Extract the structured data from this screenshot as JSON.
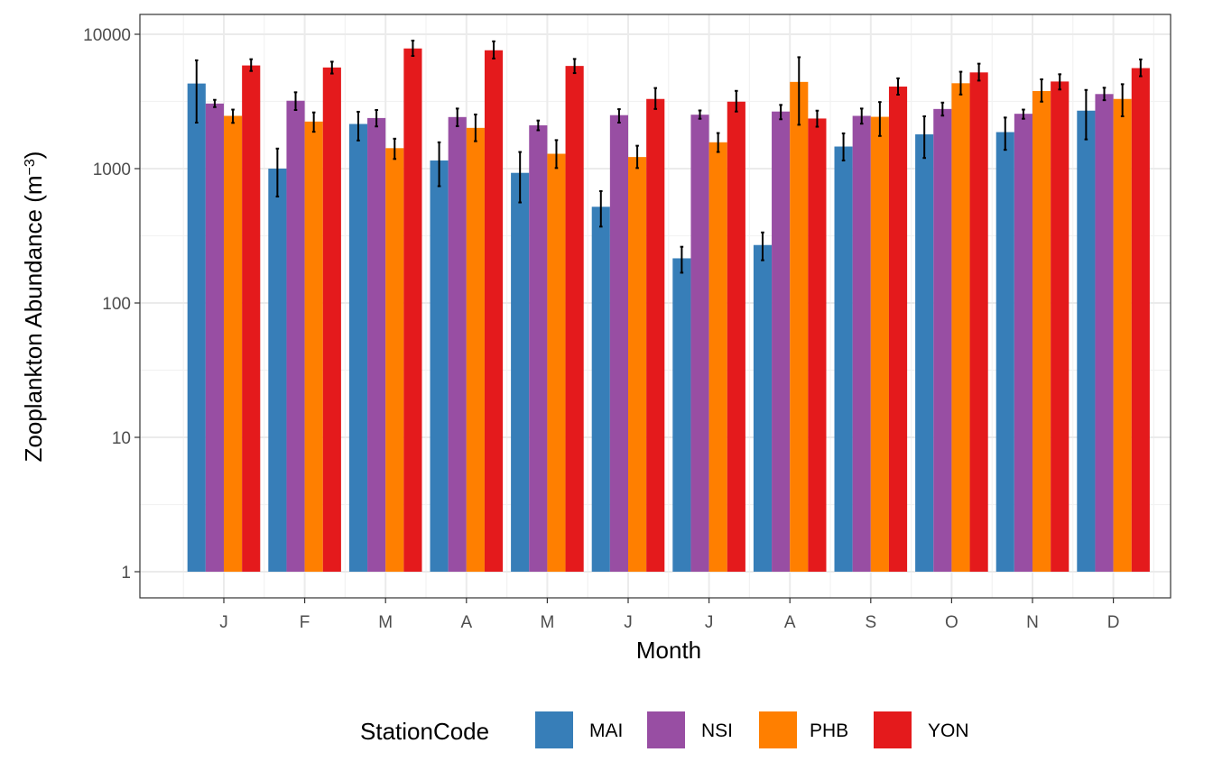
{
  "chart_data": {
    "type": "bar",
    "scale": "log10",
    "xlabel": "Month",
    "ylabel_main": "Zooplankton Abundance (m",
    "ylabel_sup": "−3",
    "ylabel_close": ")",
    "ylim": [
      1,
      10000
    ],
    "yticks": [
      1,
      10,
      100,
      1000,
      10000
    ],
    "ytick_labels": [
      "1",
      "10",
      "100",
      "1000",
      "10000"
    ],
    "categories": [
      "J",
      "F",
      "M",
      "A",
      "M",
      "J",
      "J",
      "A",
      "S",
      "O",
      "N",
      "D"
    ],
    "legend_title": "StationCode",
    "legend_position": "bottom",
    "series": [
      {
        "name": "MAI",
        "color": "#377EB8",
        "values": [
          4300,
          1000,
          2150,
          1150,
          930,
          520,
          215,
          270,
          1460,
          1800,
          1870,
          2700
        ],
        "err_low": [
          2200,
          620,
          1620,
          740,
          560,
          370,
          168,
          208,
          1150,
          1200,
          1380,
          1650
        ],
        "err_high": [
          6400,
          1410,
          2650,
          1570,
          1330,
          680,
          262,
          335,
          1830,
          2450,
          2400,
          3850
        ]
      },
      {
        "name": "NSI",
        "color": "#984EA3",
        "values": [
          3050,
          3200,
          2380,
          2420,
          2100,
          2500,
          2520,
          2660,
          2470,
          2780,
          2560,
          3590
        ],
        "err_low": [
          2870,
          2730,
          2060,
          2070,
          1930,
          2200,
          2350,
          2330,
          2160,
          2480,
          2350,
          3230
        ],
        "err_high": [
          3250,
          3700,
          2730,
          2800,
          2280,
          2770,
          2710,
          2980,
          2800,
          3100,
          2750,
          4000
        ]
      },
      {
        "name": "PHB",
        "color": "#FF7F00",
        "values": [
          2470,
          2240,
          1420,
          2010,
          1290,
          1220,
          1570,
          4420,
          2430,
          4320,
          3780,
          3300
        ],
        "err_low": [
          2190,
          1880,
          1180,
          1600,
          1010,
          1010,
          1330,
          2120,
          1750,
          3560,
          3150,
          2450
        ],
        "err_high": [
          2750,
          2620,
          1670,
          2530,
          1630,
          1480,
          1840,
          6750,
          3130,
          5260,
          4620,
          4250
        ]
      },
      {
        "name": "YON",
        "color": "#E41A1C",
        "values": [
          5860,
          5660,
          7840,
          7600,
          5810,
          3300,
          3150,
          2360,
          4080,
          5200,
          4450,
          5600
        ],
        "err_low": [
          5330,
          5100,
          6900,
          6600,
          5140,
          2780,
          2660,
          2050,
          3550,
          4520,
          3880,
          4870
        ],
        "err_high": [
          6520,
          6250,
          8970,
          8860,
          6550,
          3980,
          3790,
          2700,
          4700,
          6040,
          5040,
          6500
        ]
      }
    ]
  }
}
